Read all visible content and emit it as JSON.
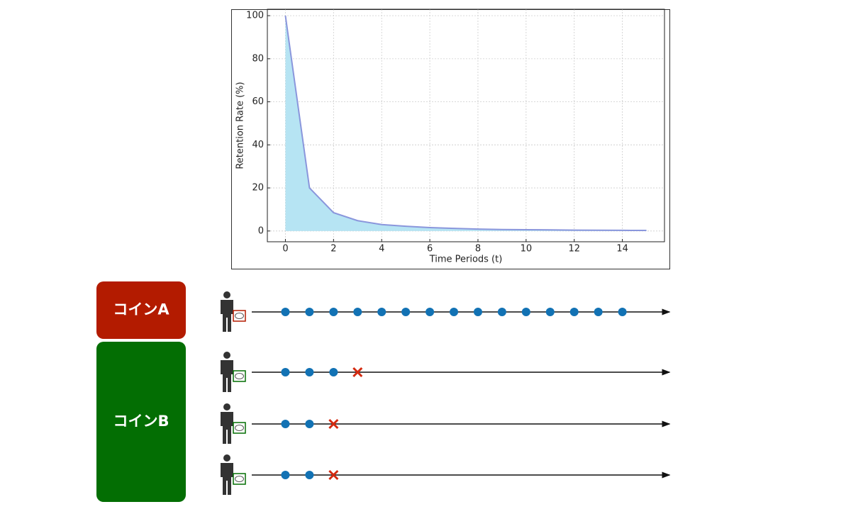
{
  "chart_data": {
    "type": "area",
    "xlabel": "Time Periods (t)",
    "ylabel": "Retention Rate (%)",
    "x": [
      0,
      1,
      2,
      3,
      4,
      5,
      6,
      7,
      8,
      9,
      10,
      11,
      12,
      13,
      14,
      15
    ],
    "values": [
      100,
      20,
      8.5,
      4.8,
      3,
      2.2,
      1.6,
      1.2,
      0.9,
      0.7,
      0.6,
      0.5,
      0.4,
      0.35,
      0.3,
      0.25
    ],
    "color": "#8a96dc",
    "fill": "#b6e4f3",
    "xlim": [
      -0.75,
      15.75
    ],
    "ylim": [
      -5,
      103
    ],
    "xticks": [
      0,
      2,
      4,
      6,
      8,
      10,
      12,
      14
    ],
    "yticks": [
      0,
      20,
      40,
      60,
      80,
      100
    ],
    "grid": true
  },
  "diagram": {
    "groups": [
      {
        "label": "コインA",
        "color": "#b31b00"
      },
      {
        "label": "コインB",
        "color": "#036e03"
      }
    ],
    "timelines": [
      {
        "group": 0,
        "retained": 15,
        "churned": false
      },
      {
        "group": 1,
        "retained": 3,
        "churned": true
      },
      {
        "group": 1,
        "retained": 2,
        "churned": true
      },
      {
        "group": 1,
        "retained": 2,
        "churned": true
      }
    ]
  }
}
